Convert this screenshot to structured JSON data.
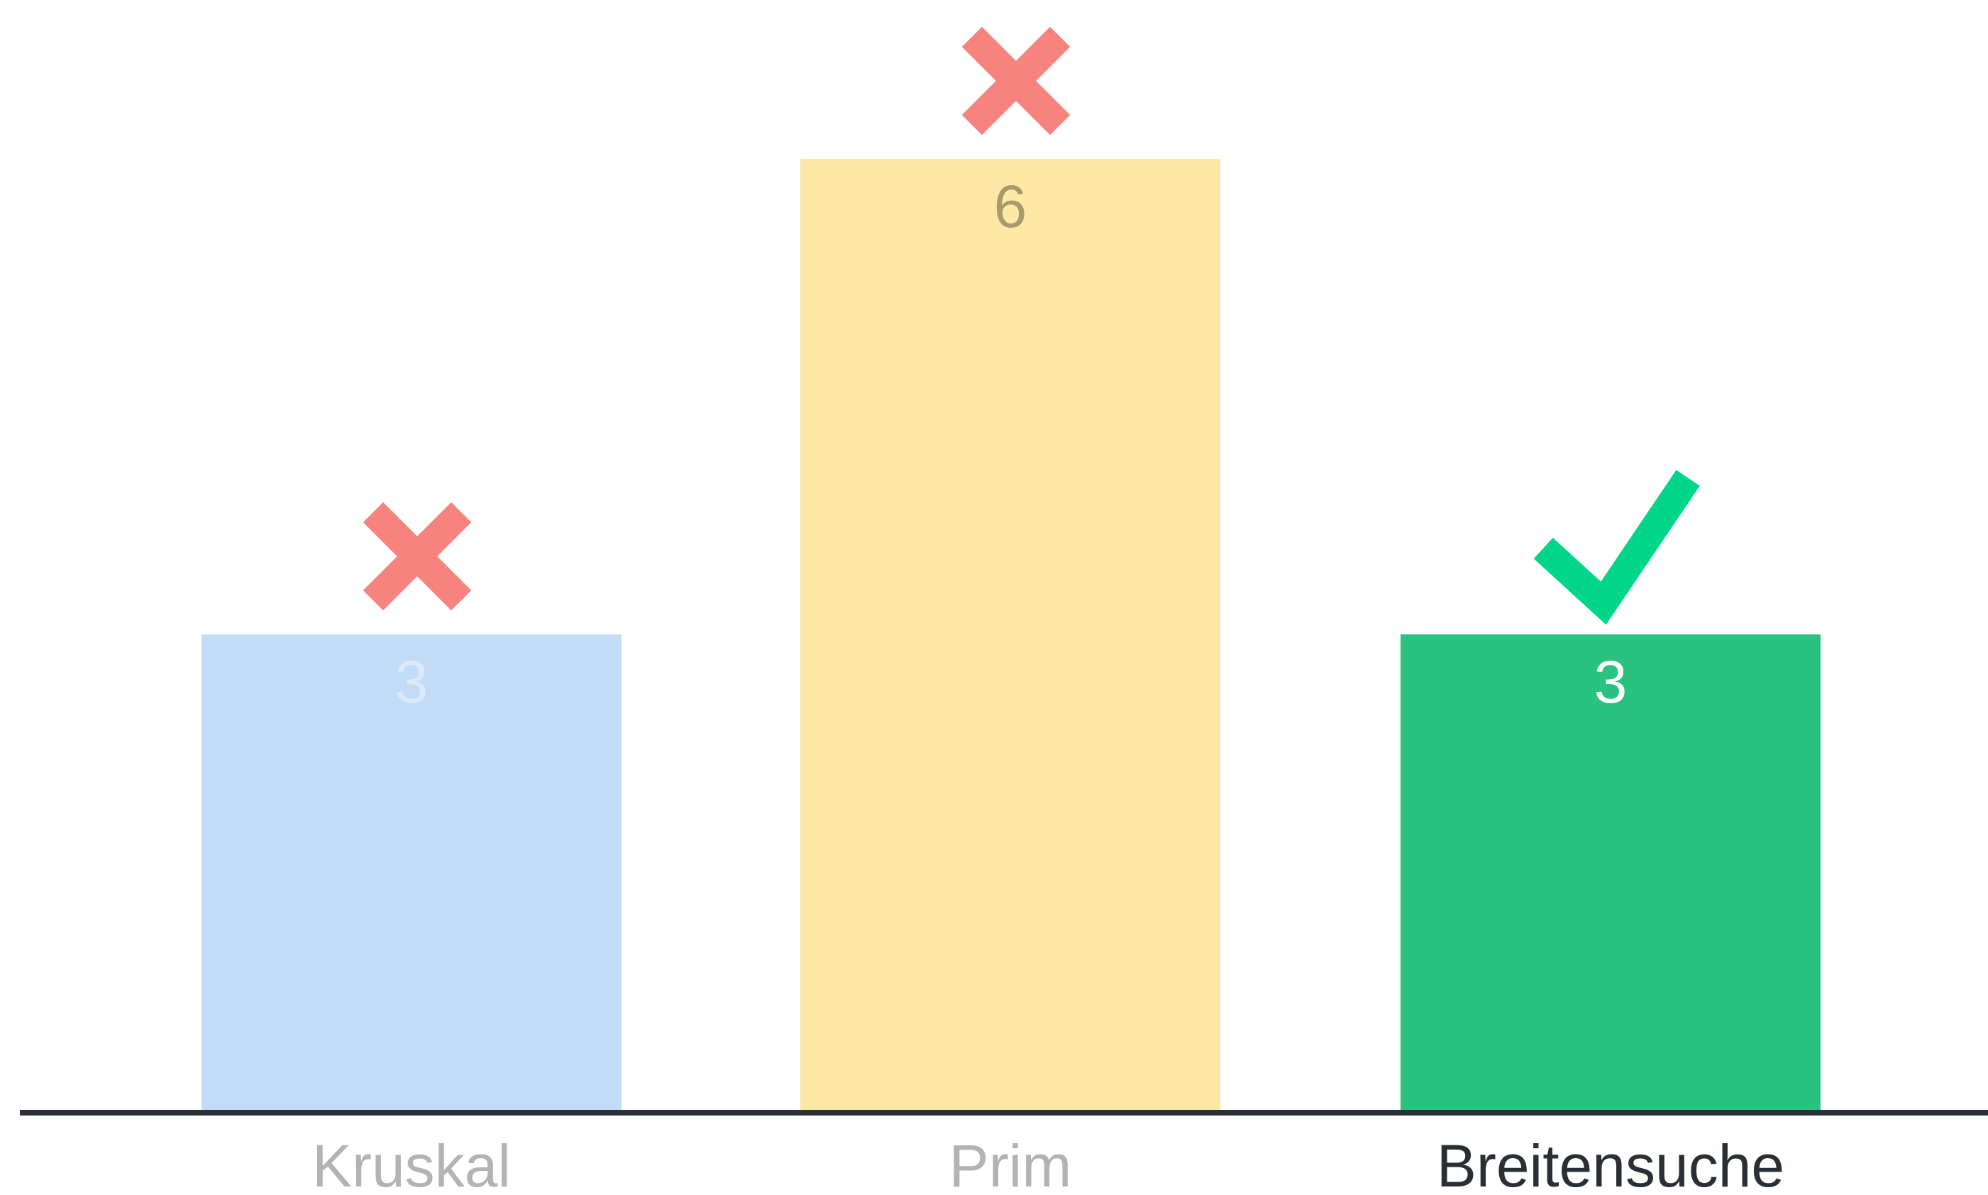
{
  "chart_data": {
    "type": "bar",
    "categories": [
      "Kruskal",
      "Prim",
      "Breitensuche"
    ],
    "values": [
      3,
      6,
      3
    ],
    "ylim": [
      0,
      6
    ],
    "grid": false,
    "bars": [
      {
        "label": "Kruskal",
        "value_label": "3",
        "color": "#c2dcf8",
        "value_color": "#dde9f9",
        "label_color": "#b3b3b3",
        "marker": "cross-icon",
        "marker_color": "#f7837f"
      },
      {
        "label": "Prim",
        "value_label": "6",
        "color": "#fde8a6",
        "value_color": "#a99a6c",
        "label_color": "#b3b3b3",
        "marker": "cross-icon",
        "marker_color": "#f7837f"
      },
      {
        "label": "Breitensuche",
        "value_label": "3",
        "color": "#29c27e",
        "value_color": "#ffffff",
        "label_color": "#2a2e35",
        "marker": "check-icon",
        "marker_color": "#00d68a"
      }
    ],
    "axis_color": "#2a2e35"
  }
}
